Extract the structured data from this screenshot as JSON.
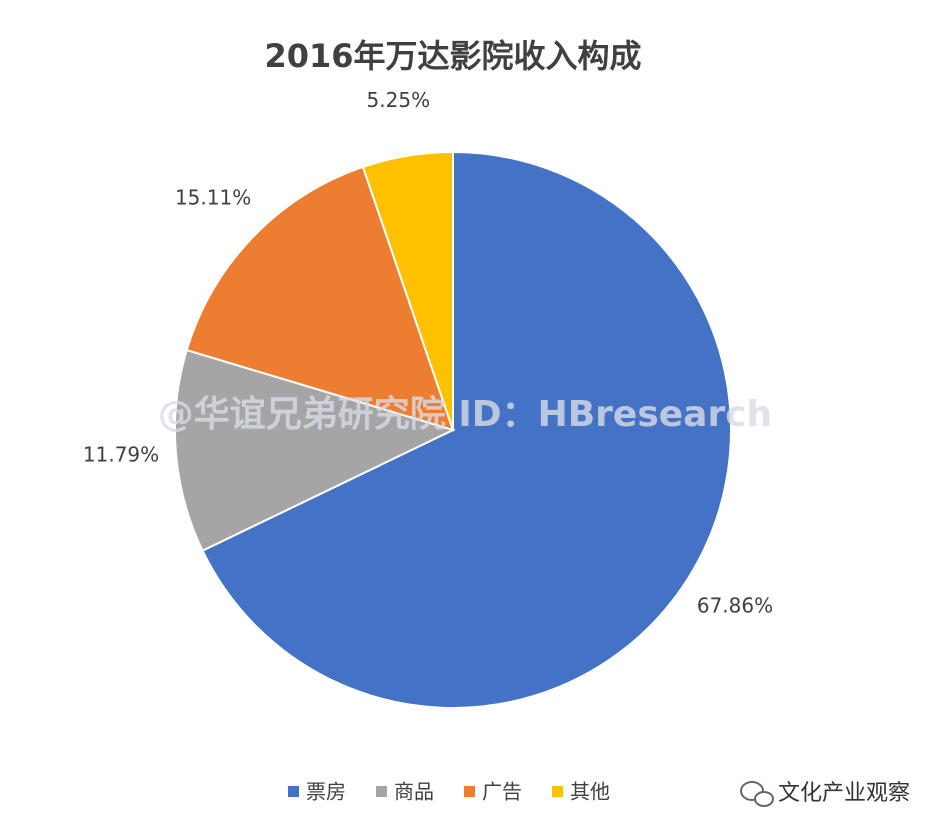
{
  "chart_data": {
    "type": "pie",
    "title": "2016年万达影院收入构成",
    "categories": [
      "票房",
      "商品",
      "广告",
      "其他"
    ],
    "values": [
      67.86,
      11.79,
      15.11,
      5.25
    ],
    "value_labels": [
      "67.86%",
      "11.79%",
      "15.11%",
      "5.25%"
    ],
    "colors": [
      "#4472c4",
      "#a5a5a5",
      "#ed7d31",
      "#ffc000"
    ],
    "legend": "bottom",
    "watermark": "@华谊兄弟研究院 ID：HBresearch",
    "source": "文化产业观察"
  }
}
